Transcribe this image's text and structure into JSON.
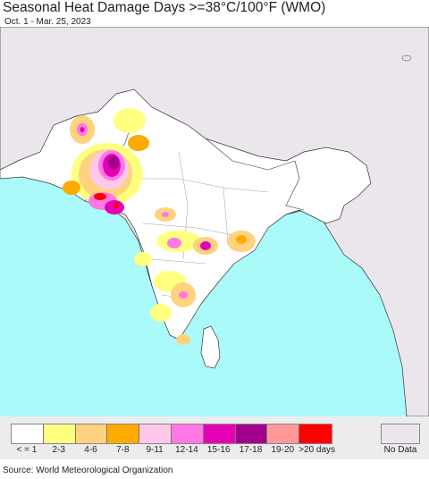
{
  "title": "Seasonal Heat Damage Days >=38°C/100°F (WMO)",
  "subtitle": "Oct. 1 - Mar. 25, 2023",
  "source": "Source: World Meteorological Organization",
  "colors": {
    "ocean": "#aafafa",
    "land_outside": "#ebe6ec",
    "land_study": "#ffffff",
    "border": "#333333"
  },
  "legend": {
    "items": [
      {
        "label": "< = 1",
        "color": "#ffffff"
      },
      {
        "label": "2-3",
        "color": "#ffff80"
      },
      {
        "label": "4-6",
        "color": "#ffd27f"
      },
      {
        "label": "7-8",
        "color": "#ffaa00"
      },
      {
        "label": "9-11",
        "color": "#ffc8eb"
      },
      {
        "label": "12-14",
        "color": "#ff78e6"
      },
      {
        "label": "15-16",
        "color": "#e600b4"
      },
      {
        "label": "17-18",
        "color": "#a0008c"
      },
      {
        "label": "19-20",
        "color": "#ff9999"
      },
      {
        "label": ">20 days",
        "color": "#ff0000"
      }
    ],
    "no_data": {
      "label": "No Data",
      "color": "#ebe6ec"
    }
  }
}
